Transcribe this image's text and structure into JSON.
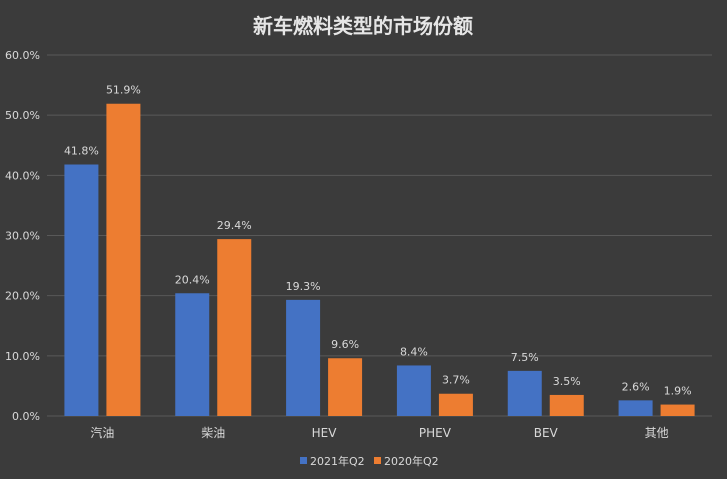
{
  "chart_data": {
    "type": "bar",
    "title": "新车燃料类型的市场份额",
    "categories": [
      "汽油",
      "柴油",
      "HEV",
      "PHEV",
      "BEV",
      "其他"
    ],
    "series": [
      {
        "name": "2021年Q2",
        "values": [
          41.8,
          20.4,
          19.3,
          8.4,
          7.5,
          2.6
        ],
        "labels": [
          "41.8%",
          "20.4%",
          "19.3%",
          "8.4%",
          "7.5%",
          "2.6%"
        ],
        "color": "#4472c4"
      },
      {
        "name": "2020年Q2",
        "values": [
          51.9,
          29.4,
          9.6,
          3.7,
          3.5,
          1.9
        ],
        "labels": [
          "51.9%",
          "29.4%",
          "9.6%",
          "3.7%",
          "3.5%",
          "1.9%"
        ],
        "color": "#ed7d31"
      }
    ],
    "y_ticks": [
      "0.0%",
      "10.0%",
      "20.0%",
      "30.0%",
      "40.0%",
      "50.0%",
      "60.0%"
    ],
    "ylim": [
      0,
      60
    ],
    "grid": true,
    "legend": "bottom",
    "background": "#3b3b3b",
    "grid_color": "#595959"
  }
}
